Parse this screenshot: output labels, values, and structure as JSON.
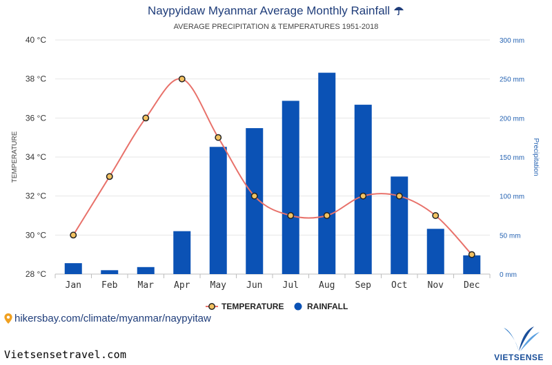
{
  "title": "Naypyidaw Myanmar Average Monthly Rainfall",
  "title_icon": "umbrella-icon",
  "subtitle": "AVERAGE PRECIPITATION & TEMPERATURES 1951-2018",
  "source_text": "hikersbay.com/climate/myanmar/naypyitaw",
  "site_text": "Vietsensetravel.com",
  "logo_text": "VIETSENSE",
  "colors": {
    "rainfall": "#0b52b5",
    "temperature": "#e8716a",
    "marker_fill": "#f2c261",
    "right_axis": "#2462b2",
    "title": "#1f3d7a"
  },
  "chart_data": {
    "type": "bar",
    "categories": [
      "Jan",
      "Feb",
      "Mar",
      "Apr",
      "May",
      "Jun",
      "Jul",
      "Aug",
      "Sep",
      "Oct",
      "Nov",
      "Dec"
    ],
    "series": [
      {
        "name": "TEMPERATURE",
        "type": "line",
        "axis": "left",
        "values": [
          30,
          33,
          36,
          38,
          35,
          32,
          31,
          31,
          32,
          32,
          31,
          29
        ]
      },
      {
        "name": "RAINFALL",
        "type": "bar",
        "axis": "right",
        "values": [
          14,
          5,
          9,
          55,
          163,
          187,
          222,
          258,
          217,
          125,
          58,
          24
        ]
      }
    ],
    "ylabel_left": "TEMPERATURE",
    "ylabel_right": "Precipitation",
    "ylim_left": [
      28,
      40
    ],
    "ylim_right": [
      0,
      300
    ],
    "yticks_left": [
      "28 °C",
      "30 °C",
      "32 °C",
      "34 °C",
      "36 °C",
      "38 °C",
      "40 °C"
    ],
    "yticks_right": [
      "0 mm",
      "50 mm",
      "100 mm",
      "150 mm",
      "200 mm",
      "250 mm",
      "300 mm"
    ],
    "grid": true,
    "legend_position": "bottom"
  }
}
